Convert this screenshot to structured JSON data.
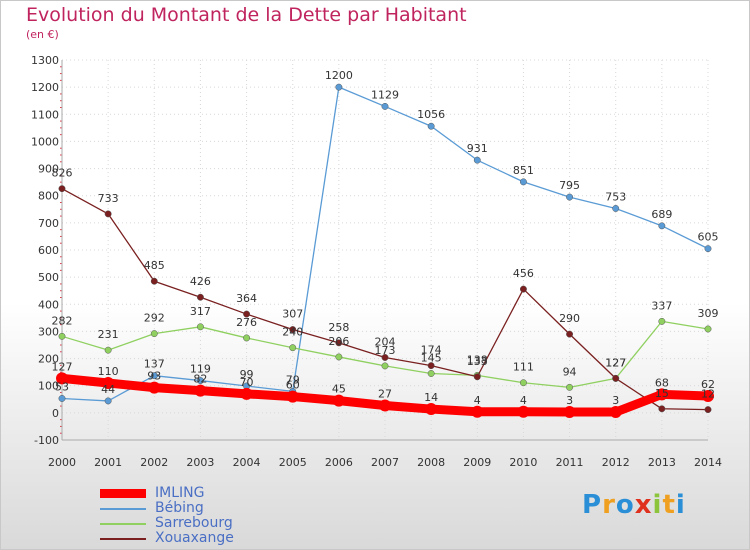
{
  "header": {
    "title": "Evolution du Montant de la Dette par Habitant",
    "subtitle": "(en €)"
  },
  "logo": {
    "text": "Proxiti",
    "letters": [
      {
        "ch": "P",
        "color": "#2a8fd6"
      },
      {
        "ch": "r",
        "color": "#f0a020"
      },
      {
        "ch": "o",
        "color": "#2a8fd6"
      },
      {
        "ch": "x",
        "color": "#e0301e"
      },
      {
        "ch": "i",
        "color": "#8cc43c"
      },
      {
        "ch": "t",
        "color": "#f0a020"
      },
      {
        "ch": "i",
        "color": "#2a8fd6"
      }
    ]
  },
  "chart_data": {
    "type": "line",
    "title": "Evolution du Montant de la Dette par Habitant",
    "subtitle": "(en €)",
    "xlabel": "",
    "ylabel": "",
    "x": [
      2000,
      2001,
      2002,
      2003,
      2004,
      2005,
      2006,
      2007,
      2008,
      2009,
      2010,
      2011,
      2012,
      2013,
      2014
    ],
    "xlim": [
      2000,
      2014
    ],
    "ylim": [
      -100,
      1300
    ],
    "yticks": [
      -100,
      0,
      100,
      200,
      300,
      400,
      500,
      600,
      700,
      800,
      900,
      1000,
      1100,
      1200,
      1300
    ],
    "grid": true,
    "legend": "bottom-left",
    "series": [
      {
        "name": "IMLING",
        "color": "#ff0000",
        "values": [
          127,
          110,
          93,
          82,
          70,
          60,
          45,
          27,
          14,
          4,
          4,
          3,
          3,
          68,
          62
        ],
        "labels": true
      },
      {
        "name": "Bébing",
        "color": "#5a9bd5",
        "values": [
          53,
          44,
          137,
          119,
          99,
          79,
          1200,
          1129,
          1056,
          931,
          851,
          795,
          753,
          689,
          605
        ],
        "labels": true
      },
      {
        "name": "Sarrebourg",
        "color": "#8fd060",
        "values": [
          282,
          231,
          292,
          317,
          276,
          240,
          206,
          173,
          145,
          138,
          111,
          94,
          127,
          337,
          309
        ],
        "labels": true
      },
      {
        "name": "Xouaxange",
        "color": "#7a2020",
        "values": [
          826,
          733,
          485,
          426,
          364,
          307,
          258,
          204,
          174,
          133,
          456,
          290,
          127,
          15,
          12
        ],
        "labels": true
      }
    ]
  }
}
